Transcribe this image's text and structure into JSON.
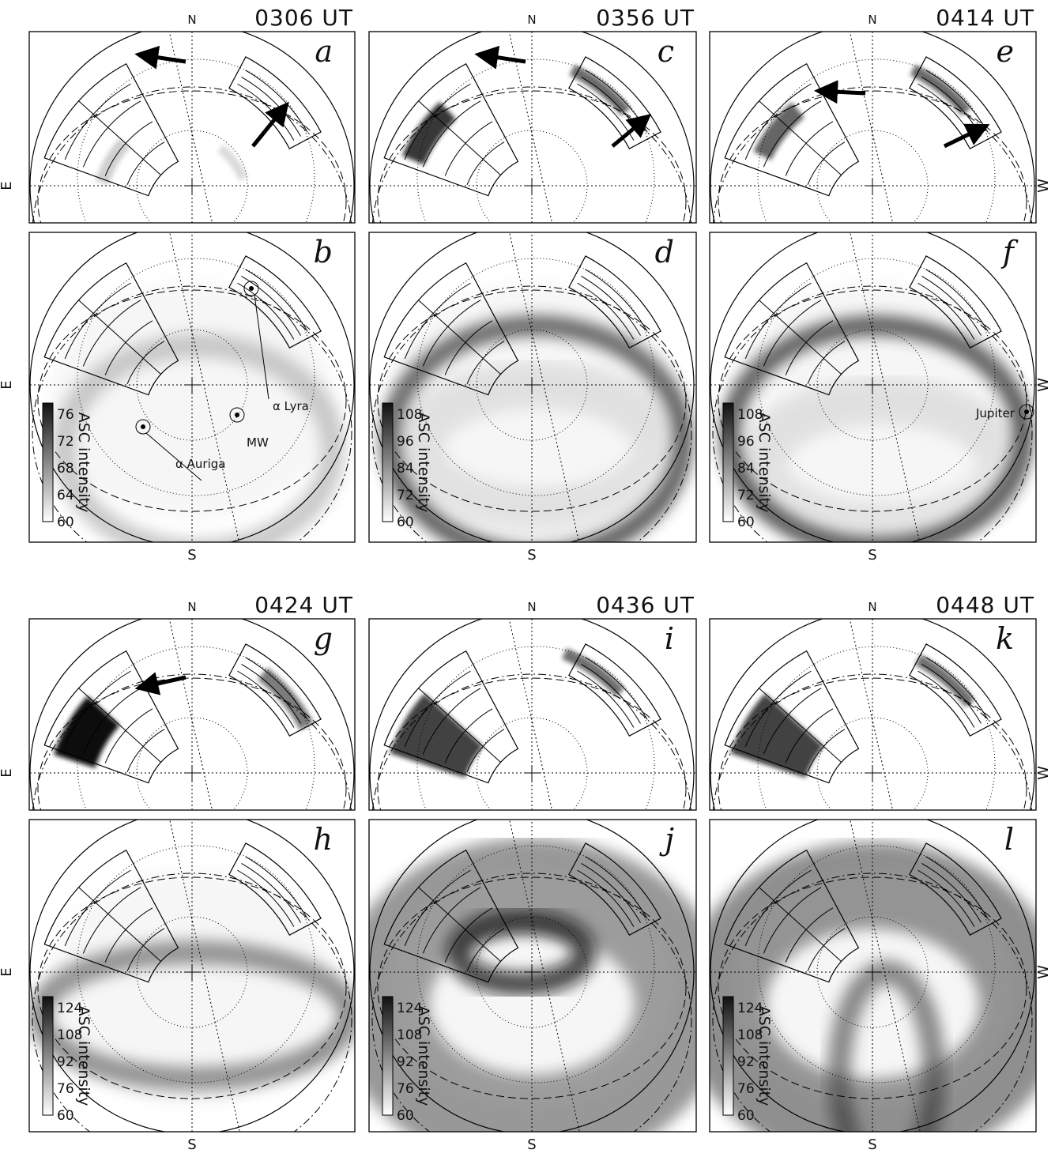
{
  "east": "E",
  "west": "W",
  "north": "N",
  "south": "S",
  "colorbar_title": "ASC intensity",
  "rows": [
    {
      "columns": [
        {
          "time": "0306 UT",
          "top_letter": "a",
          "bottom_letter": "b",
          "colorbar_ticks": [
            76,
            72,
            68,
            64,
            60
          ],
          "labels": [
            "α Lyra",
            "α Auriga",
            "MW"
          ]
        },
        {
          "time": "0356 UT",
          "top_letter": "c",
          "bottom_letter": "d",
          "colorbar_ticks": [
            108,
            96,
            84,
            72,
            60
          ],
          "labels": []
        },
        {
          "time": "0414 UT",
          "top_letter": "e",
          "bottom_letter": "f",
          "colorbar_ticks": [
            108,
            96,
            84,
            72,
            60
          ],
          "labels": [
            "Jupiter"
          ]
        }
      ]
    },
    {
      "columns": [
        {
          "time": "0424 UT",
          "top_letter": "g",
          "bottom_letter": "h",
          "colorbar_ticks": [
            124,
            108,
            92,
            76,
            60
          ],
          "labels": []
        },
        {
          "time": "0436 UT",
          "top_letter": "i",
          "bottom_letter": "j",
          "colorbar_ticks": [
            124,
            108,
            92,
            76,
            60
          ],
          "labels": []
        },
        {
          "time": "0448 UT",
          "top_letter": "k",
          "bottom_letter": "l",
          "colorbar_ticks": [
            124,
            108,
            92,
            76,
            60
          ],
          "labels": []
        }
      ]
    }
  ]
}
